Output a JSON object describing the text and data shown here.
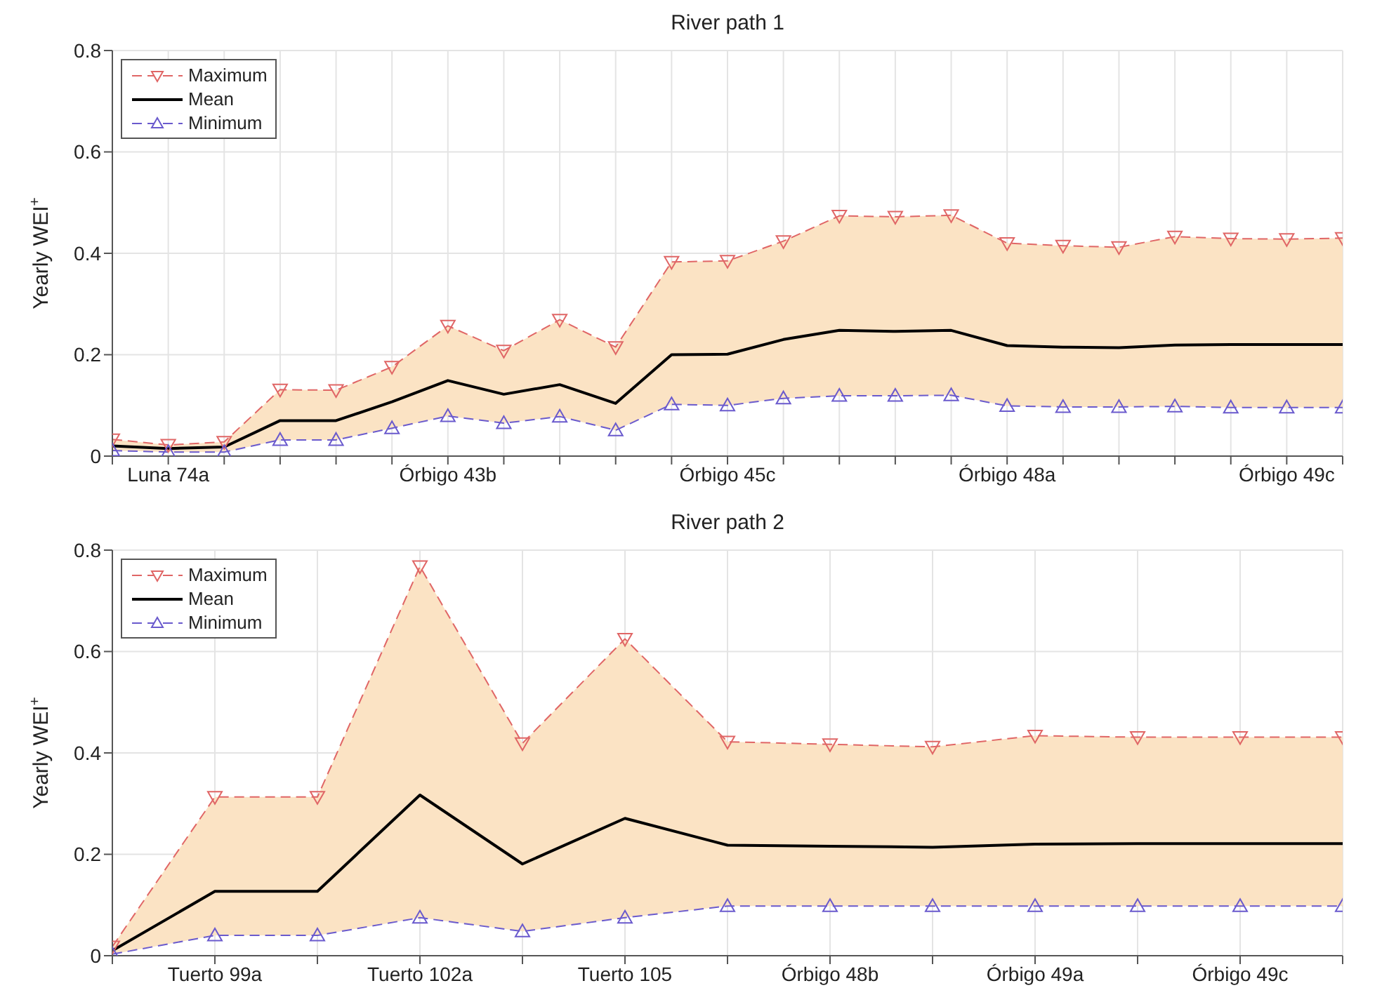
{
  "chart_data": [
    {
      "type": "line",
      "title": "River path 1",
      "ylabel": "Yearly WEI$^{+}$",
      "categories": [
        null,
        "Luna 74a",
        null,
        null,
        null,
        null,
        "Órbigo 43b",
        null,
        null,
        null,
        null,
        "Órbigo 45c",
        null,
        null,
        null,
        null,
        "Órbigo 48a",
        null,
        null,
        null,
        null,
        "Órbigo 49c",
        null
      ],
      "series": [
        {
          "name": "Maximum",
          "color": "#e06666",
          "line_style": "dashed",
          "marker": "triangle_down",
          "values": [
            0.033,
            0.022,
            0.028,
            0.131,
            0.13,
            0.176,
            0.257,
            0.208,
            0.269,
            0.215,
            0.383,
            0.385,
            0.424,
            0.474,
            0.472,
            0.475,
            0.42,
            0.415,
            0.412,
            0.433,
            0.429,
            0.428,
            0.43
          ]
        },
        {
          "name": "Mean",
          "color": "#000000",
          "line_style": "solid",
          "marker": "none",
          "values": [
            0.02,
            0.015,
            0.018,
            0.07,
            0.07,
            0.107,
            0.149,
            0.122,
            0.141,
            0.104,
            0.2,
            0.201,
            0.23,
            0.248,
            0.246,
            0.248,
            0.218,
            0.215,
            0.214,
            0.219,
            0.22,
            0.22,
            0.22
          ],
          "lower": [
            0.011,
            0.008,
            0.008,
            0.032,
            0.032,
            0.055,
            0.079,
            0.065,
            0.078,
            0.051,
            0.102,
            0.1,
            0.114,
            0.119,
            0.119,
            0.12,
            0.099,
            0.097,
            0.097,
            0.098,
            0.096,
            0.096,
            0.096
          ],
          "upper": [
            0.033,
            0.022,
            0.028,
            0.131,
            0.13,
            0.176,
            0.257,
            0.208,
            0.269,
            0.215,
            0.383,
            0.385,
            0.424,
            0.474,
            0.472,
            0.475,
            0.42,
            0.415,
            0.412,
            0.433,
            0.429,
            0.428,
            0.43
          ]
        },
        {
          "name": "Minimum",
          "color": "#6a5acd",
          "line_style": "dashed",
          "marker": "triangle",
          "values": [
            0.011,
            0.008,
            0.008,
            0.032,
            0.032,
            0.055,
            0.079,
            0.065,
            0.078,
            0.051,
            0.102,
            0.1,
            0.114,
            0.119,
            0.119,
            0.12,
            0.099,
            0.097,
            0.097,
            0.098,
            0.096,
            0.096,
            0.096
          ]
        }
      ],
      "ylim": [
        0,
        0.8
      ],
      "yticks": [
        0,
        0.2,
        0.4,
        0.6,
        0.8
      ],
      "grid": true,
      "legend": "top left"
    },
    {
      "type": "line",
      "title": "River path 2",
      "ylabel": "Yearly WEI$^{+}$",
      "categories": [
        null,
        "Tuerto 99a",
        null,
        "Tuerto 102a",
        null,
        "Tuerto 105",
        null,
        "Órbigo 48b",
        null,
        "Órbigo 49a",
        null,
        "Órbigo 49c",
        null
      ],
      "series": [
        {
          "name": "Maximum",
          "color": "#e06666",
          "line_style": "dashed",
          "marker": "triangle_down",
          "values": [
            0.018,
            0.313,
            0.313,
            0.768,
            0.419,
            0.625,
            0.422,
            0.417,
            0.412,
            0.434,
            0.431,
            0.431,
            0.431
          ]
        },
        {
          "name": "Mean",
          "color": "#000000",
          "line_style": "solid",
          "marker": "none",
          "values": [
            0.01,
            0.127,
            0.127,
            0.317,
            0.181,
            0.271,
            0.218,
            0.216,
            0.214,
            0.22,
            0.221,
            0.221,
            0.221
          ],
          "lower": [
            0.003,
            0.04,
            0.04,
            0.075,
            0.048,
            0.075,
            0.098,
            0.098,
            0.098,
            0.098,
            0.098,
            0.098,
            0.098
          ],
          "upper": [
            0.018,
            0.313,
            0.313,
            0.768,
            0.419,
            0.625,
            0.422,
            0.417,
            0.412,
            0.434,
            0.431,
            0.431,
            0.431
          ]
        },
        {
          "name": "Minimum",
          "color": "#6a5acd",
          "line_style": "dashed",
          "marker": "triangle",
          "values": [
            0.003,
            0.04,
            0.04,
            0.075,
            0.048,
            0.075,
            0.098,
            0.098,
            0.098,
            0.098,
            0.098,
            0.098,
            0.098
          ]
        }
      ],
      "ylim": [
        0,
        0.8
      ],
      "yticks": [
        0,
        0.2,
        0.4,
        0.6,
        0.8
      ],
      "grid": true,
      "legend": "top left"
    }
  ]
}
